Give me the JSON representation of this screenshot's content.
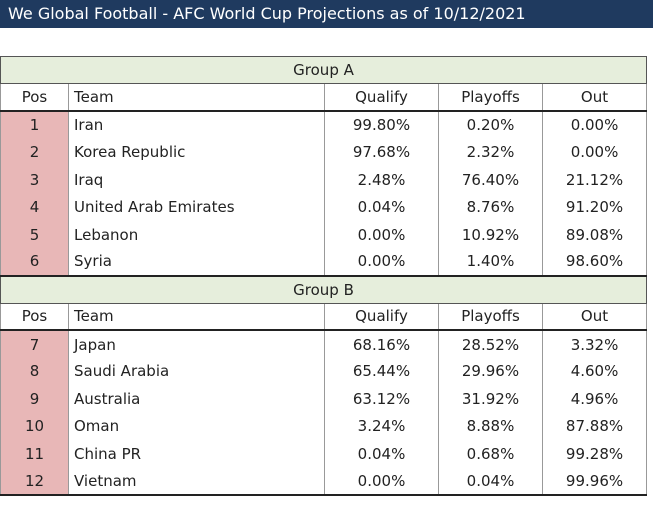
{
  "title": "We Global Football - AFC World Cup Projections as of 10/12/2021",
  "headers": {
    "pos": "Pos",
    "team": "Team",
    "qualify": "Qualify",
    "playoffs": "Playoffs",
    "out": "Out"
  },
  "groups": [
    {
      "name": "Group A",
      "rows": [
        {
          "pos": "1",
          "team": "Iran",
          "qualify": "99.80%",
          "playoffs": "0.20%",
          "out": "0.00%"
        },
        {
          "pos": "2",
          "team": "Korea Republic",
          "qualify": "97.68%",
          "playoffs": "2.32%",
          "out": "0.00%"
        },
        {
          "pos": "3",
          "team": "Iraq",
          "qualify": "2.48%",
          "playoffs": "76.40%",
          "out": "21.12%"
        },
        {
          "pos": "4",
          "team": "United Arab Emirates",
          "qualify": "0.04%",
          "playoffs": "8.76%",
          "out": "91.20%"
        },
        {
          "pos": "5",
          "team": "Lebanon",
          "qualify": "0.00%",
          "playoffs": "10.92%",
          "out": "89.08%"
        },
        {
          "pos": "6",
          "team": "Syria",
          "qualify": "0.00%",
          "playoffs": "1.40%",
          "out": "98.60%"
        }
      ]
    },
    {
      "name": "Group B",
      "rows": [
        {
          "pos": "7",
          "team": "Japan",
          "qualify": "68.16%",
          "playoffs": "28.52%",
          "out": "3.32%"
        },
        {
          "pos": "8",
          "team": "Saudi Arabia",
          "qualify": "65.44%",
          "playoffs": "29.96%",
          "out": "4.60%"
        },
        {
          "pos": "9",
          "team": "Australia",
          "qualify": "63.12%",
          "playoffs": "31.92%",
          "out": "4.96%"
        },
        {
          "pos": "10",
          "team": "Oman",
          "qualify": "3.24%",
          "playoffs": "8.88%",
          "out": "87.88%"
        },
        {
          "pos": "11",
          "team": "China PR",
          "qualify": "0.04%",
          "playoffs": "0.68%",
          "out": "99.28%"
        },
        {
          "pos": "12",
          "team": "Vietnam",
          "qualify": "0.00%",
          "playoffs": "0.04%",
          "out": "99.96%"
        }
      ]
    }
  ]
}
